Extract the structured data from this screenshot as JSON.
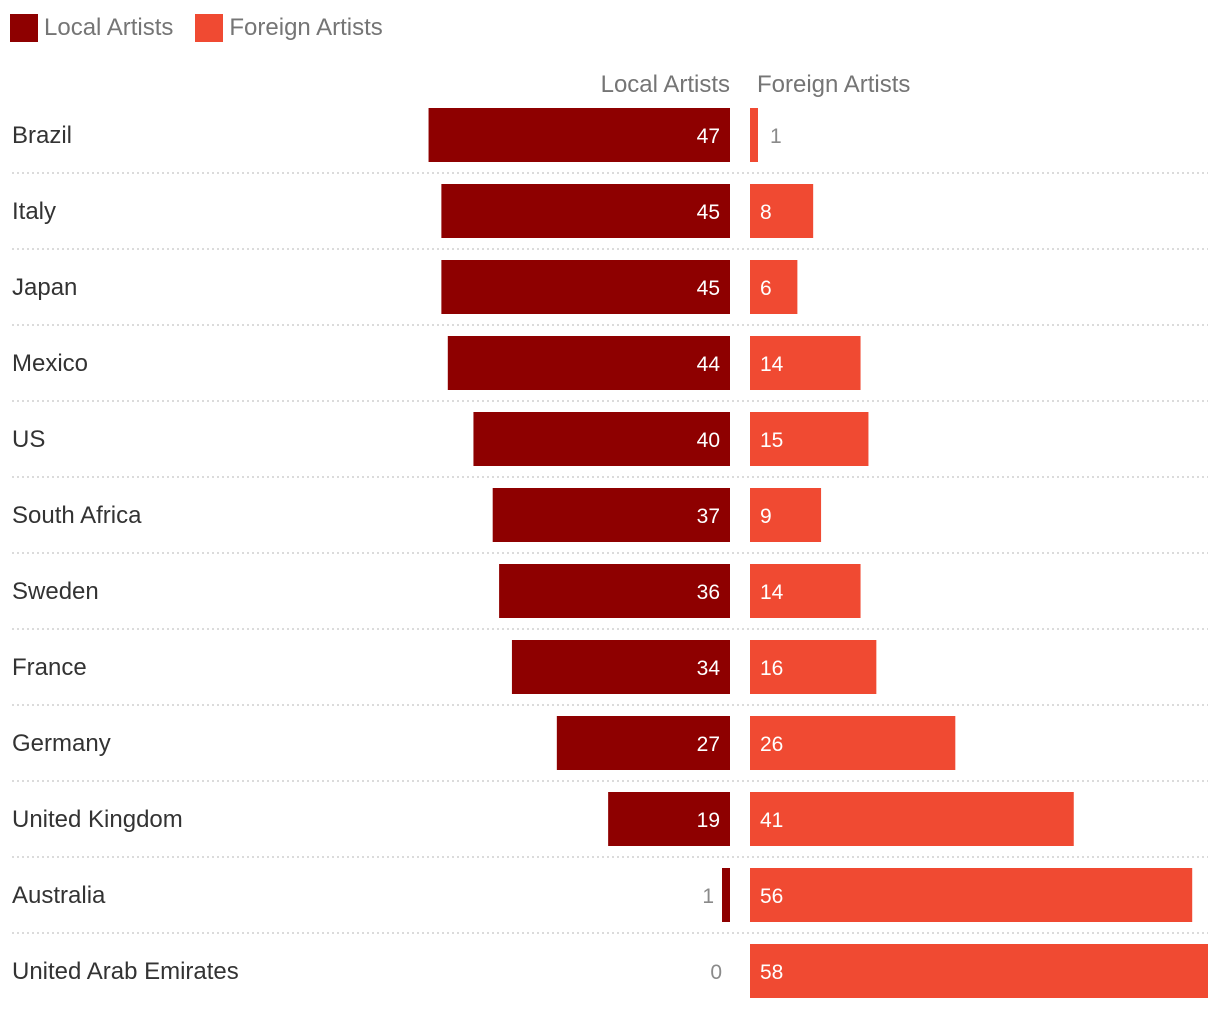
{
  "legend": {
    "local_label": "Local Artists",
    "foreign_label": "Foreign Artists"
  },
  "colors": {
    "local": "#8e0000",
    "foreign": "#f04a32",
    "grid": "#cfcfcf",
    "label_text": "#333333",
    "header_text": "#757575",
    "inside_value": "#ffffff",
    "outside_value": "#8a8a8a"
  },
  "chart_data": {
    "type": "bar",
    "title": "",
    "column_headers": [
      "Local Artists",
      "Foreign Artists"
    ],
    "categories": [
      "Brazil",
      "Italy",
      "Japan",
      "Mexico",
      "US",
      "South Africa",
      "Sweden",
      "France",
      "Germany",
      "United Kingdom",
      "Australia",
      "United Arab Emirates"
    ],
    "series": [
      {
        "name": "Local Artists",
        "values": [
          47,
          45,
          45,
          44,
          40,
          37,
          36,
          34,
          27,
          19,
          1,
          0
        ]
      },
      {
        "name": "Foreign Artists",
        "values": [
          1,
          8,
          6,
          14,
          15,
          9,
          14,
          16,
          26,
          41,
          56,
          58
        ]
      }
    ],
    "xlim_local": [
      0,
      58
    ],
    "xlim_foreign": [
      0,
      58
    ]
  }
}
